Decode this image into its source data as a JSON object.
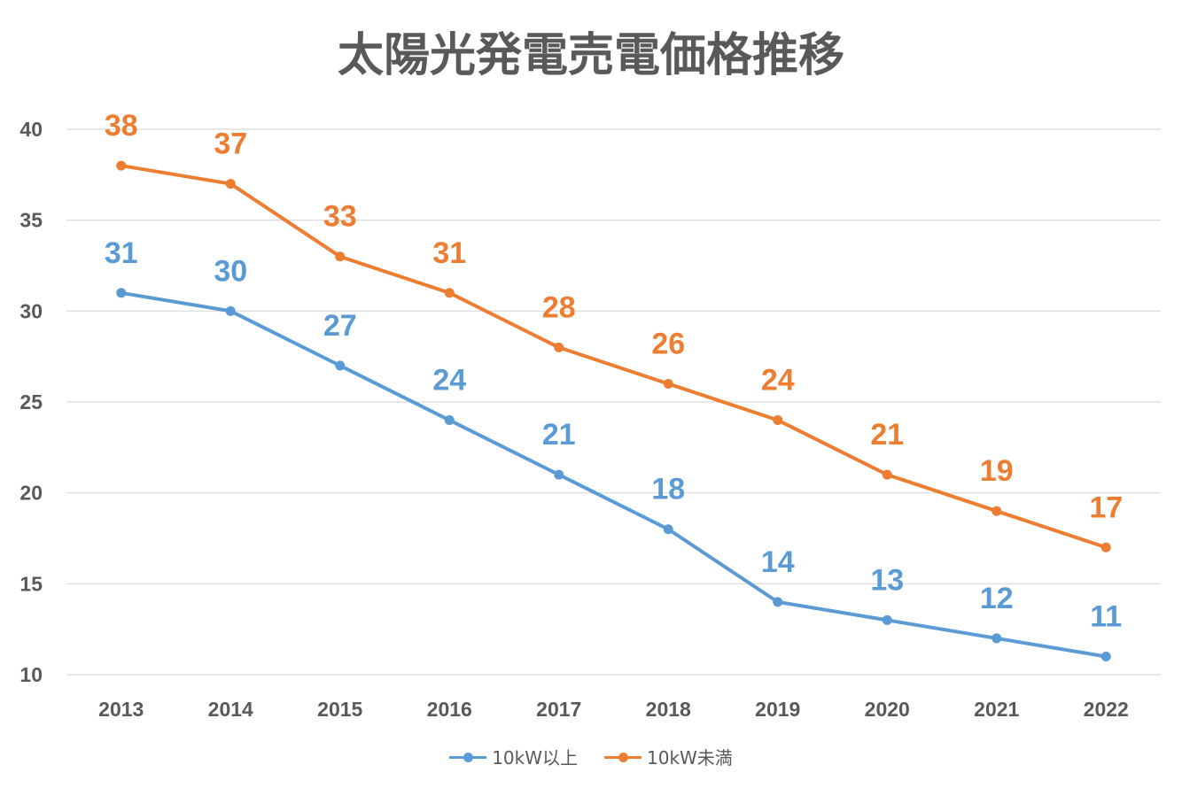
{
  "chart_data": {
    "type": "line",
    "title": "太陽光発電売電価格推移",
    "categories": [
      "2013",
      "2014",
      "2015",
      "2016",
      "2017",
      "2018",
      "2019",
      "2020",
      "2021",
      "2022"
    ],
    "series": [
      {
        "name": "10kW以上",
        "color": "#5b9bd5",
        "values": [
          31,
          30,
          27,
          24,
          21,
          18,
          14,
          13,
          12,
          11
        ]
      },
      {
        "name": "10kW未満",
        "color": "#ed7d31",
        "values": [
          38,
          37,
          33,
          31,
          28,
          26,
          24,
          21,
          19,
          17
        ]
      }
    ],
    "ylim": [
      10,
      40
    ],
    "yticks": [
      10,
      15,
      20,
      25,
      30,
      35,
      40
    ],
    "grid": true,
    "data_labels": true,
    "legend_position": "bottom"
  }
}
